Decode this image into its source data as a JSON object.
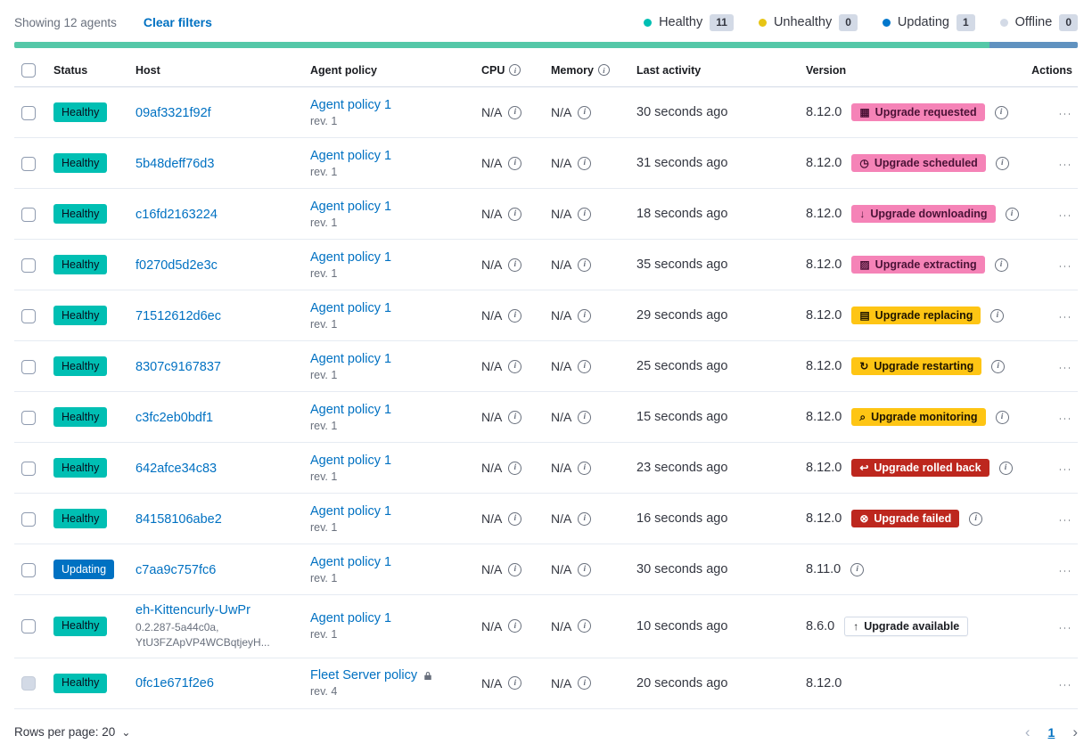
{
  "palette": {
    "healthy": "#00BFB3",
    "unhealthy": "#E7C515",
    "updating": "#0077CC",
    "offline": "#D3DAE6",
    "accent": "#F583B7",
    "warning": "#FEC514",
    "danger": "#BD271E",
    "link": "#0071C2"
  },
  "toolbar": {
    "showing_text": "Showing 12 agents",
    "clear_filters_label": "Clear filters",
    "legend": [
      {
        "label": "Healthy",
        "count": "11",
        "color": "#00BFB3"
      },
      {
        "label": "Unhealthy",
        "count": "0",
        "color": "#E7C515"
      },
      {
        "label": "Updating",
        "count": "1",
        "color": "#0077CC"
      },
      {
        "label": "Offline",
        "count": "0",
        "color": "#D3DAE6"
      }
    ]
  },
  "health_bar": {
    "segments": [
      {
        "status": "healthy",
        "fraction": 0.9167,
        "color": "#54C8A8"
      },
      {
        "status": "updating",
        "fraction": 0.0833,
        "color": "#6092C0"
      }
    ]
  },
  "table": {
    "header": {
      "status": "Status",
      "host": "Host",
      "policy": "Agent policy",
      "cpu": "CPU",
      "memory": "Memory",
      "last_activity": "Last activity",
      "version": "Version",
      "actions": "Actions"
    },
    "rows": [
      {
        "status": "Healthy",
        "status_type": "success",
        "host": "09af3321f92f",
        "host_sub": "",
        "policy": "Agent policy 1",
        "policy_rev": "rev. 1",
        "policy_locked": false,
        "cpu": "N/A",
        "memory": "N/A",
        "last_activity": "30 seconds ago",
        "version": "8.12.0",
        "upgrade": {
          "label": "Upgrade requested",
          "type": "accent",
          "icon": "calendar-icon",
          "glyph": "▦"
        },
        "version_info": true,
        "checkbox_disabled": false
      },
      {
        "status": "Healthy",
        "status_type": "success",
        "host": "5b48deff76d3",
        "host_sub": "",
        "policy": "Agent policy 1",
        "policy_rev": "rev. 1",
        "policy_locked": false,
        "cpu": "N/A",
        "memory": "N/A",
        "last_activity": "31 seconds ago",
        "version": "8.12.0",
        "upgrade": {
          "label": "Upgrade scheduled",
          "type": "accent",
          "icon": "clock-icon",
          "glyph": "◷"
        },
        "version_info": true,
        "checkbox_disabled": false
      },
      {
        "status": "Healthy",
        "status_type": "success",
        "host": "c16fd2163224",
        "host_sub": "",
        "policy": "Agent policy 1",
        "policy_rev": "rev. 1",
        "policy_locked": false,
        "cpu": "N/A",
        "memory": "N/A",
        "last_activity": "18 seconds ago",
        "version": "8.12.0",
        "upgrade": {
          "label": "Upgrade downloading",
          "type": "accent",
          "icon": "download-icon",
          "glyph": "↓"
        },
        "version_info": true,
        "checkbox_disabled": false
      },
      {
        "status": "Healthy",
        "status_type": "success",
        "host": "f0270d5d2e3c",
        "host_sub": "",
        "policy": "Agent policy 1",
        "policy_rev": "rev. 1",
        "policy_locked": false,
        "cpu": "N/A",
        "memory": "N/A",
        "last_activity": "35 seconds ago",
        "version": "8.12.0",
        "upgrade": {
          "label": "Upgrade extracting",
          "type": "accent",
          "icon": "package-icon",
          "glyph": "▨"
        },
        "version_info": true,
        "checkbox_disabled": false
      },
      {
        "status": "Healthy",
        "status_type": "success",
        "host": "71512612d6ec",
        "host_sub": "",
        "policy": "Agent policy 1",
        "policy_rev": "rev. 1",
        "policy_locked": false,
        "cpu": "N/A",
        "memory": "N/A",
        "last_activity": "29 seconds ago",
        "version": "8.12.0",
        "upgrade": {
          "label": "Upgrade replacing",
          "type": "warning",
          "icon": "document-icon",
          "glyph": "▤"
        },
        "version_info": true,
        "checkbox_disabled": false
      },
      {
        "status": "Healthy",
        "status_type": "success",
        "host": "8307c9167837",
        "host_sub": "",
        "policy": "Agent policy 1",
        "policy_rev": "rev. 1",
        "policy_locked": false,
        "cpu": "N/A",
        "memory": "N/A",
        "last_activity": "25 seconds ago",
        "version": "8.12.0",
        "upgrade": {
          "label": "Upgrade restarting",
          "type": "warning",
          "icon": "refresh-icon",
          "glyph": "↻"
        },
        "version_info": true,
        "checkbox_disabled": false
      },
      {
        "status": "Healthy",
        "status_type": "success",
        "host": "c3fc2eb0bdf1",
        "host_sub": "",
        "policy": "Agent policy 1",
        "policy_rev": "rev. 1",
        "policy_locked": false,
        "cpu": "N/A",
        "memory": "N/A",
        "last_activity": "15 seconds ago",
        "version": "8.12.0",
        "upgrade": {
          "label": "Upgrade monitoring",
          "type": "warning",
          "icon": "inspect-icon",
          "glyph": "⌕"
        },
        "version_info": true,
        "checkbox_disabled": false
      },
      {
        "status": "Healthy",
        "status_type": "success",
        "host": "642afce34c83",
        "host_sub": "",
        "policy": "Agent policy 1",
        "policy_rev": "rev. 1",
        "policy_locked": false,
        "cpu": "N/A",
        "memory": "N/A",
        "last_activity": "23 seconds ago",
        "version": "8.12.0",
        "upgrade": {
          "label": "Upgrade rolled back",
          "type": "danger",
          "icon": "return-arrow-icon",
          "glyph": "↩"
        },
        "version_info": true,
        "checkbox_disabled": false
      },
      {
        "status": "Healthy",
        "status_type": "success",
        "host": "84158106abe2",
        "host_sub": "",
        "policy": "Agent policy 1",
        "policy_rev": "rev. 1",
        "policy_locked": false,
        "cpu": "N/A",
        "memory": "N/A",
        "last_activity": "16 seconds ago",
        "version": "8.12.0",
        "upgrade": {
          "label": "Upgrade failed",
          "type": "danger",
          "icon": "error-cross-icon",
          "glyph": "⊗"
        },
        "version_info": true,
        "checkbox_disabled": false
      },
      {
        "status": "Updating",
        "status_type": "primary",
        "host": "c7aa9c757fc6",
        "host_sub": "",
        "policy": "Agent policy 1",
        "policy_rev": "rev. 1",
        "policy_locked": false,
        "cpu": "N/A",
        "memory": "N/A",
        "last_activity": "30 seconds ago",
        "version": "8.11.0",
        "upgrade": null,
        "version_info": true,
        "checkbox_disabled": false
      },
      {
        "status": "Healthy",
        "status_type": "success",
        "host": "eh-Kittencurly-UwPr",
        "host_sub": "0.2.287-5a44c0a,\nYtU3FZApVP4WCBqtjeyH...",
        "policy": "Agent policy 1",
        "policy_rev": "rev. 1",
        "policy_locked": false,
        "cpu": "N/A",
        "memory": "N/A",
        "last_activity": "10 seconds ago",
        "version": "8.6.0",
        "upgrade": {
          "label": "Upgrade available",
          "type": "hollow",
          "icon": "arrow-up-icon",
          "glyph": "↑"
        },
        "version_info": false,
        "checkbox_disabled": false
      },
      {
        "status": "Healthy",
        "status_type": "success",
        "host": "0fc1e671f2e6",
        "host_sub": "",
        "policy": "Fleet Server policy",
        "policy_rev": "rev. 4",
        "policy_locked": true,
        "cpu": "N/A",
        "memory": "N/A",
        "last_activity": "20 seconds ago",
        "version": "8.12.0",
        "upgrade": null,
        "version_info": false,
        "checkbox_disabled": true
      }
    ]
  },
  "footer": {
    "rows_per_page_label": "Rows per page: 20",
    "page": "1"
  }
}
